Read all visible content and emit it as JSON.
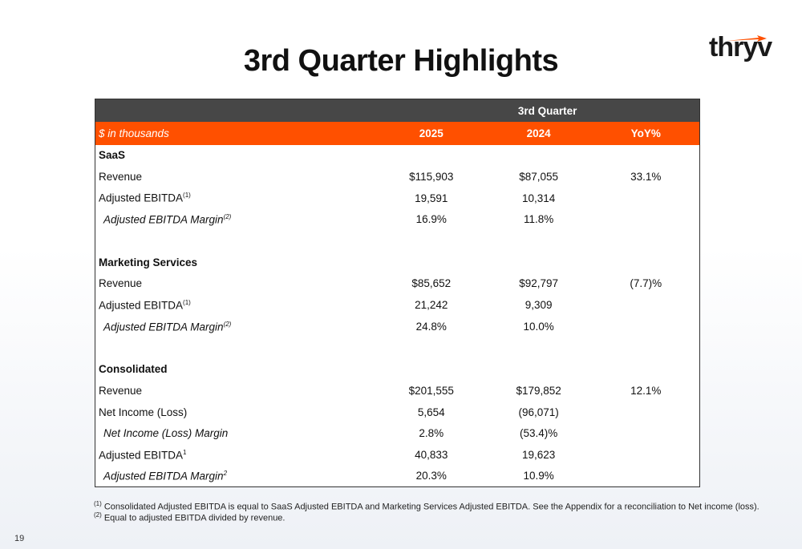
{
  "title": "3rd Quarter Highlights",
  "logo": {
    "text": "thryv",
    "accent": "#ff5000"
  },
  "table": {
    "period_header": "3rd Quarter",
    "units_label": "$ in thousands",
    "columns": [
      "2025",
      "2024",
      "YoY%"
    ],
    "rows": [
      {
        "label": "SaaS",
        "type": "section",
        "values": [
          "",
          "",
          ""
        ]
      },
      {
        "label": "Revenue",
        "sup": "",
        "type": "normal",
        "values": [
          "$115,903",
          "$87,055",
          "33.1%"
        ]
      },
      {
        "label": "Adjusted EBITDA",
        "sup": "(1)",
        "type": "normal",
        "values": [
          "19,591",
          "10,314",
          ""
        ]
      },
      {
        "label": "Adjusted EBITDA Margin",
        "sup": "(2)",
        "type": "italic",
        "values": [
          "16.9%",
          "11.8%",
          ""
        ]
      },
      {
        "label": "",
        "type": "blank",
        "values": [
          "",
          "",
          ""
        ]
      },
      {
        "label": "Marketing Services",
        "type": "section",
        "values": [
          "",
          "",
          ""
        ]
      },
      {
        "label": "Revenue",
        "sup": "",
        "type": "normal",
        "values": [
          "$85,652",
          "$92,797",
          "(7.7)%"
        ]
      },
      {
        "label": "Adjusted EBITDA",
        "sup": "(1)",
        "type": "normal",
        "values": [
          "21,242",
          "9,309",
          ""
        ]
      },
      {
        "label": "Adjusted EBITDA Margin",
        "sup": "(2)",
        "type": "italic",
        "values": [
          "24.8%",
          "10.0%",
          ""
        ]
      },
      {
        "label": "",
        "type": "blank",
        "values": [
          "",
          "",
          ""
        ]
      },
      {
        "label": "Consolidated",
        "type": "section",
        "values": [
          "",
          "",
          ""
        ]
      },
      {
        "label": "Revenue",
        "sup": "",
        "type": "normal",
        "values": [
          "$201,555",
          "$179,852",
          "12.1%"
        ]
      },
      {
        "label": "Net Income (Loss)",
        "sup": "",
        "type": "normal",
        "values": [
          "5,654",
          "(96,071)",
          ""
        ]
      },
      {
        "label": "Net Income (Loss) Margin",
        "sup": "",
        "type": "italic",
        "values": [
          "2.8%",
          "(53.4)%",
          ""
        ]
      },
      {
        "label": "Adjusted EBITDA",
        "sup": "1",
        "type": "normal",
        "values": [
          "40,833",
          "19,623",
          ""
        ]
      },
      {
        "label": "Adjusted EBITDA Margin",
        "sup": "2",
        "type": "italic",
        "values": [
          "20.3%",
          "10.9%",
          ""
        ]
      }
    ],
    "colors": {
      "top_header": "#474747",
      "orange_header": "#ff5000"
    }
  },
  "footnotes": [
    {
      "mark": "(1)",
      "text": "Consolidated Adjusted EBITDA is equal to SaaS Adjusted EBITDA and Marketing Services Adjusted EBITDA. See the Appendix for a reconciliation to Net income (loss)."
    },
    {
      "mark": "(2)",
      "text": "Equal to adjusted EBITDA divided by revenue."
    }
  ],
  "page_number": "19"
}
